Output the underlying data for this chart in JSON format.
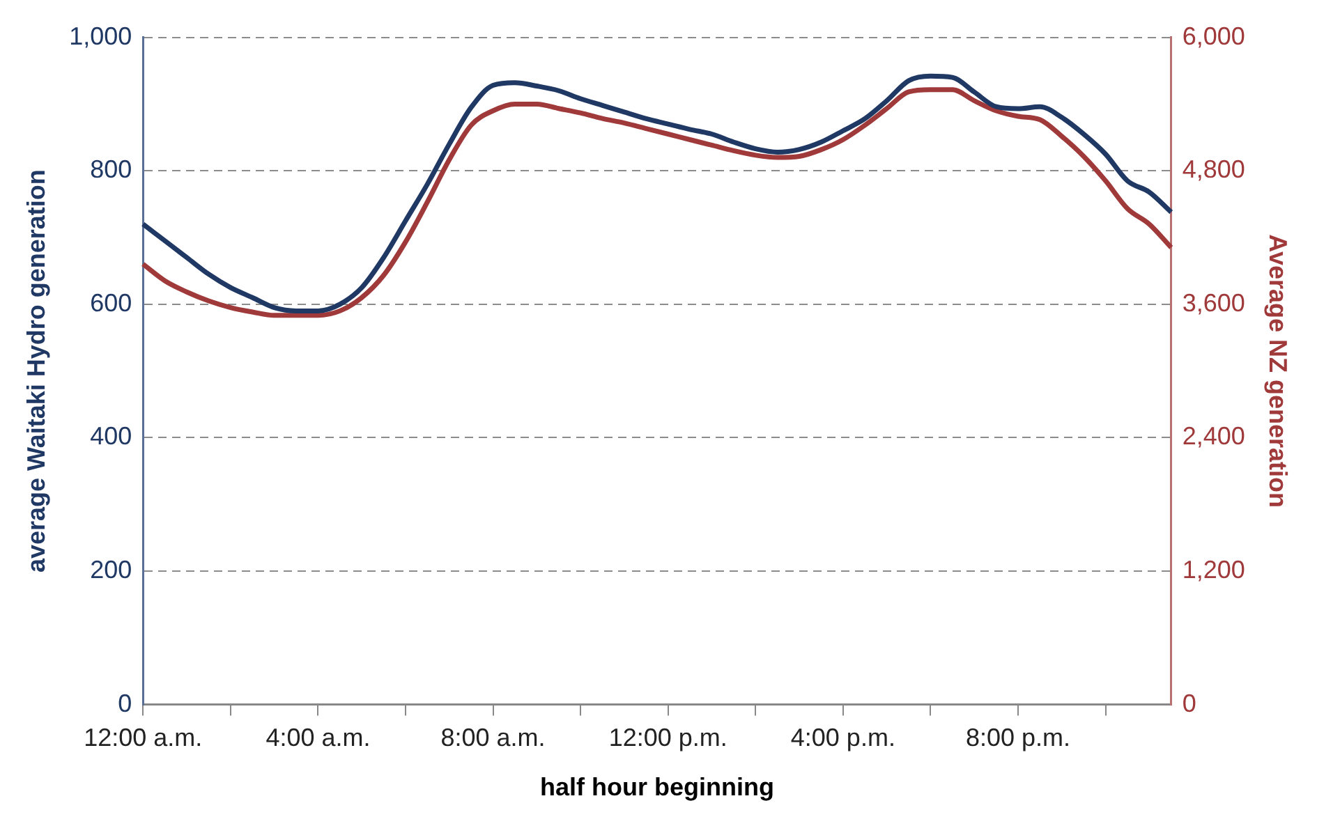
{
  "chart_data": {
    "type": "line",
    "xlabel": "half hour beginning",
    "ylabel": "average Waitaki Hydro generation",
    "y2label": "Average NZ generation",
    "categories": [
      "12:00 a.m.",
      null,
      null,
      null,
      null,
      null,
      null,
      null,
      "4:00 a.m.",
      null,
      null,
      null,
      null,
      null,
      null,
      null,
      "8:00 a.m.",
      null,
      null,
      null,
      null,
      null,
      null,
      null,
      "12:00 p.m.",
      null,
      null,
      null,
      null,
      null,
      null,
      null,
      "4:00 p.m.",
      null,
      null,
      null,
      null,
      null,
      null,
      null,
      "8:00 p.m.",
      null,
      null,
      null,
      null,
      null,
      null,
      null
    ],
    "series": [
      {
        "color": "#1f3864",
        "values": [
          720,
          695,
          670,
          645,
          625,
          610,
          595,
          590,
          590,
          600,
          625,
          670,
          725,
          780,
          840,
          895,
          928,
          932,
          927,
          920,
          908,
          898,
          888,
          878,
          870,
          862,
          855,
          843,
          833,
          828,
          832,
          843,
          860,
          878,
          905,
          935,
          942,
          940,
          918,
          896,
          893,
          896,
          880,
          855,
          825,
          785,
          768,
          738
        ]
      },
      {
        "color": "#a0393a",
        "axis": "y2",
        "values": [
          3960,
          3810,
          3710,
          3630,
          3570,
          3530,
          3500,
          3500,
          3500,
          3540,
          3660,
          3860,
          4160,
          4520,
          4900,
          5210,
          5340,
          5400,
          5400,
          5360,
          5320,
          5270,
          5230,
          5180,
          5130,
          5080,
          5030,
          4980,
          4940,
          4920,
          4930,
          4990,
          5080,
          5210,
          5360,
          5510,
          5530,
          5530,
          5430,
          5340,
          5290,
          5260,
          5110,
          4930,
          4710,
          4460,
          4320,
          4110
        ]
      }
    ],
    "ylim": [
      0,
      1000
    ],
    "yticks": [
      0,
      200,
      400,
      600,
      800,
      {
        "value": 1000,
        "label": "1,000"
      }
    ],
    "y2lim": [
      0,
      6000
    ],
    "y2ticks": [
      0,
      {
        "value": 1200,
        "label": "1,200"
      },
      {
        "value": 2400,
        "label": "2,400"
      },
      {
        "value": 3600,
        "label": "3,600"
      },
      {
        "value": 4800,
        "label": "4,800"
      },
      {
        "value": 6000,
        "label": "6,000"
      }
    ],
    "grid": "y",
    "legend": false,
    "marker": "none",
    "line_style": "solid"
  }
}
